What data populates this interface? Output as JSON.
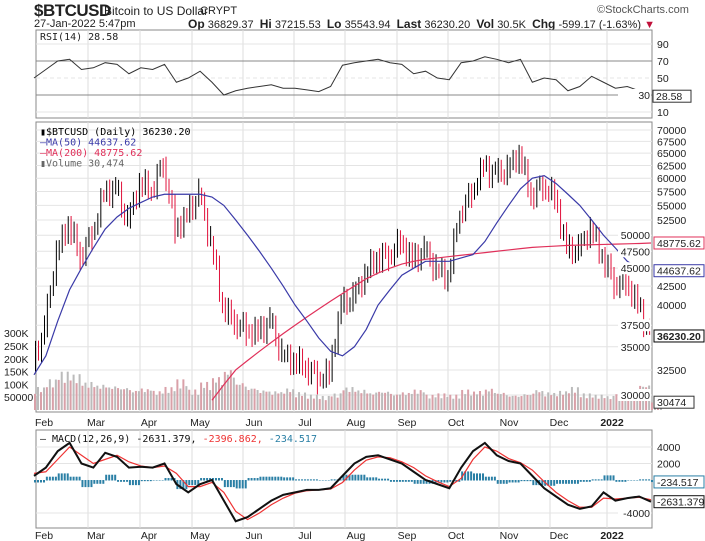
{
  "header": {
    "symbol": "$BTCUSD",
    "name": "Bitcoin to US Dollar",
    "exchange": "CRYPT",
    "brand": "©StockCharts.com",
    "datetime": "27-Jan-2022 5:47pm",
    "op_label": "Op",
    "op": "36829.37",
    "hi_label": "Hi",
    "hi": "37215.53",
    "lo_label": "Lo",
    "lo": "35543.94",
    "last_label": "Last",
    "last": "36230.20",
    "vol_label": "Vol",
    "vol": "30.5K",
    "chg_label": "Chg",
    "chg": "-599.17 (-1.63%)"
  },
  "colors": {
    "up": "#000000",
    "down": "#e0103a",
    "ma50": "#3a3aa8",
    "ma200": "#e0305a",
    "volume": "#d9a0a8",
    "rsi": "#2d6b2d",
    "macd": "#111111",
    "signal": "#ee3333",
    "hist": "#2a7fa5"
  },
  "chart_data": [
    {
      "type": "line",
      "title": "RSI(14) 28.58",
      "legend": "RSI(14) 28.58",
      "yticks": [
        90,
        70,
        50,
        30,
        10
      ],
      "ylim": [
        0,
        100
      ],
      "last_label": "28.58",
      "values": [
        50,
        60,
        70,
        72,
        60,
        62,
        68,
        66,
        55,
        62,
        60,
        66,
        45,
        50,
        58,
        45,
        30,
        35,
        38,
        40,
        42,
        38,
        38,
        36,
        34,
        40,
        65,
        68,
        70,
        72,
        68,
        66,
        55,
        58,
        50,
        48,
        68,
        70,
        75,
        72,
        68,
        72,
        45,
        50,
        48,
        35,
        40,
        52,
        45,
        38,
        40,
        35,
        28.58
      ]
    },
    {
      "type": "candlestick",
      "title": "$BTCUSD (Daily) 36230.20",
      "scale": "log",
      "ylim": [
        29000,
        71000
      ],
      "yticks": [
        70000,
        67500,
        65000,
        62500,
        60000,
        57500,
        55000,
        52500,
        50000,
        47500,
        45000,
        42500,
        40000,
        37500,
        35000,
        32500,
        30000
      ],
      "legend": [
        "$BTCUSD (Daily) 36230.20",
        "MA(50) 44637.62",
        "MA(200) 48775.62",
        "Volume 30,474"
      ],
      "x_start": "2021-01-28",
      "x_step_days": 7,
      "close": [
        33000,
        37000,
        47000,
        52000,
        47000,
        50000,
        57000,
        58000,
        52000,
        59000,
        58000,
        63000,
        51000,
        53000,
        57000,
        49000,
        40000,
        38000,
        37000,
        36500,
        38000,
        34000,
        33500,
        33000,
        31800,
        32000,
        40000,
        40800,
        44000,
        46800,
        46900,
        49000,
        46000,
        47500,
        44800,
        43800,
        53800,
        57400,
        62200,
        60600,
        61400,
        64900,
        56900,
        58900,
        56500,
        47600,
        47600,
        51000,
        47000,
        43000,
        43000,
        40000,
        36230.2
      ],
      "ma50": [
        32000,
        34000,
        38000,
        42000,
        45000,
        48000,
        51000,
        53000,
        54500,
        55500,
        56500,
        57000,
        57000,
        57000,
        57000,
        56500,
        55000,
        52500,
        50000,
        47500,
        45000,
        42500,
        40000,
        38000,
        36000,
        34500,
        34000,
        35000,
        37000,
        40000,
        42000,
        44000,
        45000,
        46000,
        46000,
        46000,
        46500,
        47000,
        49000,
        52000,
        55000,
        58000,
        60000,
        60500,
        59000,
        57000,
        55000,
        52500,
        50000,
        48000,
        46000,
        45000,
        44637.62
      ],
      "ma200": [
        null,
        null,
        null,
        null,
        null,
        null,
        null,
        null,
        null,
        null,
        null,
        null,
        null,
        null,
        null,
        29500,
        31000,
        32500,
        33500,
        34500,
        35500,
        36500,
        37500,
        38500,
        39500,
        40500,
        41500,
        42500,
        43500,
        44300,
        45000,
        45600,
        46000,
        46300,
        46500,
        46700,
        46900,
        47100,
        47300,
        47500,
        47700,
        47900,
        48100,
        48200,
        48300,
        48400,
        48450,
        48500,
        48550,
        48600,
        48650,
        48700,
        48775.62
      ],
      "ma50_label": "44637.62",
      "ma200_label": "48775.62",
      "last_label": "36230.20",
      "volume_axis": [
        "300K",
        "250K",
        "200K",
        "150K",
        "100K",
        "50000"
      ],
      "volume_last_label": "30474",
      "volume": [
        90,
        120,
        150,
        140,
        110,
        100,
        95,
        90,
        80,
        85,
        75,
        90,
        120,
        80,
        110,
        130,
        160,
        110,
        90,
        80,
        75,
        85,
        70,
        60,
        55,
        65,
        90,
        80,
        70,
        75,
        65,
        70,
        80,
        60,
        65,
        60,
        80,
        75,
        85,
        70,
        60,
        65,
        80,
        70,
        75,
        90,
        65,
        60,
        55,
        70,
        80,
        100,
        30.474
      ]
    },
    {
      "type": "line",
      "title": "MACD(12,26,9)",
      "legend": "MACD(12,26,9)",
      "macd_value": "-2631.379",
      "signal_value": "-2396.862",
      "hist_value": "-234.517",
      "yticks": [
        "4000",
        "2000",
        "-4000"
      ],
      "ylim": [
        -5500,
        5500
      ],
      "macd": [
        500,
        1500,
        3500,
        4500,
        2000,
        1500,
        3300,
        2800,
        1500,
        1600,
        1500,
        2000,
        -500,
        -1500,
        -500,
        0,
        -2500,
        -5000,
        -4500,
        -3500,
        -2500,
        -1800,
        -1500,
        -1200,
        -1200,
        -1000,
        500,
        2000,
        2800,
        3000,
        2500,
        2000,
        1000,
        0,
        -500,
        -1000,
        1500,
        3500,
        4500,
        3000,
        2300,
        2000,
        500,
        -1000,
        -2000,
        -3000,
        -3500,
        -3200,
        -1500,
        -2500,
        -2200,
        -2000,
        -2631.379
      ],
      "signal": [
        800,
        1000,
        2500,
        4000,
        3000,
        2000,
        2500,
        3000,
        2200,
        1700,
        1500,
        1700,
        800,
        -800,
        -800,
        -300,
        -1500,
        -3800,
        -4800,
        -4000,
        -3000,
        -2200,
        -1600,
        -1300,
        -1200,
        -1100,
        -300,
        1200,
        2400,
        2800,
        2700,
        2200,
        1500,
        500,
        -200,
        -800,
        200,
        2500,
        4000,
        3500,
        2600,
        2100,
        1200,
        -200,
        -1500,
        -2500,
        -3300,
        -3300,
        -2200,
        -2300,
        -2200,
        -2100,
        -2396.862
      ]
    },
    {
      "type": "axis",
      "x_labels": [
        "Feb",
        "Mar",
        "Apr",
        "May",
        "Jun",
        "Jul",
        "Aug",
        "Sep",
        "Oct",
        "Nov",
        "Dec",
        "2022"
      ]
    }
  ]
}
